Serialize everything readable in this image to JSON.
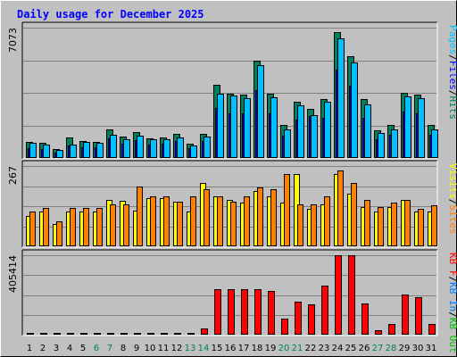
{
  "title": "Daily usage for December 2025",
  "colors": {
    "pages": "#00c0ff",
    "files": "#0000ff",
    "hits": "#00805c",
    "visits": "#ffff00",
    "sites": "#ff8000",
    "kbin": "#0080ff",
    "kbout": "#00c000",
    "kbf": "#ff0000",
    "weekday": "#000000",
    "weekend": "#00805c"
  },
  "chart_data": [
    {
      "type": "bar",
      "name": "hits-pages-panel",
      "ymax_label": "7073",
      "ylim": [
        0,
        7073
      ],
      "side_label": [
        {
          "text": "Pages",
          "color": "#00c0ff"
        },
        {
          "text": "/",
          "color": "#000000"
        },
        {
          "text": "Files",
          "color": "#0000ff"
        },
        {
          "text": "/",
          "color": "#000000"
        },
        {
          "text": "Hits",
          "color": "#00805c"
        }
      ],
      "series": [
        {
          "name": "Hits",
          "color": "#00805c",
          "values": [
            890,
            800,
            500,
            1100,
            920,
            880,
            1540,
            1150,
            1390,
            1090,
            1130,
            1300,
            780,
            1300,
            3950,
            3500,
            3460,
            5300,
            3500,
            1790,
            3050,
            2650,
            3200,
            6830,
            5500,
            3200,
            1500,
            1790,
            3550,
            3450,
            1790
          ]
        },
        {
          "name": "Files",
          "color": "#0000ff",
          "values": [
            550,
            500,
            300,
            700,
            600,
            560,
            1050,
            780,
            950,
            750,
            780,
            900,
            530,
            900,
            2700,
            2400,
            2400,
            3700,
            2400,
            1200,
            2100,
            2300,
            2200,
            4800,
            3900,
            2200,
            1000,
            1250,
            2500,
            2400,
            1250
          ]
        },
        {
          "name": "Pages",
          "color": "#00c0ff",
          "values": [
            820,
            720,
            440,
            750,
            850,
            820,
            1270,
            1000,
            1190,
            1010,
            1000,
            1100,
            700,
            1160,
            3500,
            3400,
            3250,
            5020,
            3300,
            1540,
            2850,
            2330,
            3050,
            6500,
            5200,
            2900,
            1350,
            1550,
            3330,
            3250,
            1560
          ]
        }
      ]
    },
    {
      "type": "bar",
      "name": "visits-sites-panel",
      "ymax_label": "267",
      "ylim": [
        0,
        267
      ],
      "side_label": [
        {
          "text": "Visits",
          "color": "#ffff00"
        },
        {
          "text": "/",
          "color": "#000000"
        },
        {
          "text": "Sites",
          "color": "#ff8000"
        }
      ],
      "series": [
        {
          "name": "Visits",
          "color": "#ffff00",
          "values": [
            100,
            115,
            75,
            115,
            115,
            115,
            155,
            150,
            120,
            160,
            160,
            148,
            115,
            210,
            165,
            155,
            145,
            185,
            165,
            145,
            240,
            125,
            140,
            240,
            175,
            130,
            115,
            130,
            155,
            115,
            115
          ]
        },
        {
          "name": "Sites",
          "color": "#ff8000",
          "values": [
            115,
            127,
            83,
            127,
            127,
            127,
            140,
            140,
            198,
            165,
            165,
            148,
            165,
            190,
            165,
            148,
            165,
            195,
            190,
            240,
            140,
            140,
            165,
            253,
            210,
            155,
            130,
            145,
            155,
            125,
            135
          ]
        }
      ]
    },
    {
      "type": "bar",
      "name": "kbytes-panel",
      "ymax_label": "405414",
      "ylim": [
        0,
        405414
      ],
      "side_label": [
        {
          "text": "KB F",
          "color": "#ff0000"
        },
        {
          "text": "/",
          "color": "#000000"
        },
        {
          "text": "KB In",
          "color": "#0080ff"
        },
        {
          "text": "/",
          "color": "#000000"
        },
        {
          "text": "KB Out",
          "color": "#00c000"
        }
      ],
      "series": [
        {
          "name": "KB F",
          "color": "#ff0000",
          "values": [
            7000,
            7000,
            7000,
            7000,
            11000,
            11000,
            11000,
            9000,
            9000,
            9000,
            9000,
            9000,
            9000,
            31000,
            232000,
            232000,
            232000,
            232000,
            225000,
            80000,
            167000,
            157000,
            250000,
            405000,
            405000,
            160000,
            25000,
            55000,
            205000,
            190000,
            55000
          ]
        }
      ]
    }
  ],
  "days": [
    "1",
    "2",
    "3",
    "4",
    "5",
    "6",
    "7",
    "8",
    "9",
    "10",
    "11",
    "12",
    "13",
    "14",
    "15",
    "16",
    "17",
    "18",
    "19",
    "20",
    "21",
    "22",
    "23",
    "24",
    "25",
    "26",
    "27",
    "28",
    "29",
    "30",
    "31"
  ],
  "weekend_days": [
    "6",
    "7",
    "13",
    "14",
    "20",
    "21",
    "27",
    "28"
  ]
}
